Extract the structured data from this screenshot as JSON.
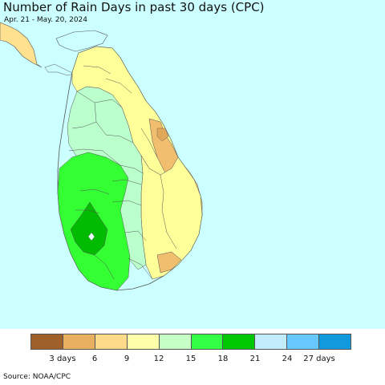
{
  "header": {
    "title": "Number of Rain Days in past 30 days (CPC)",
    "date_range": "Apr. 21 - May. 20, 2024"
  },
  "map": {
    "region": "Sri Lanka",
    "ocean_color": "#ccffff",
    "zone_colors": {
      "dark_green": "#00bb00",
      "green": "#33ff33",
      "light_green": "#bbffcc",
      "pale_yellow": "#ffff99",
      "light_orange": "#ffe190",
      "orange": "#f0be6e",
      "cyan_land": "#ccffff",
      "boundary": "#555555"
    }
  },
  "legend": {
    "colors": [
      "#a0602b",
      "#e8b060",
      "#fdd98a",
      "#ffffaa",
      "#c6ffc6",
      "#33ff44",
      "#00c800",
      "#c2ecfb",
      "#66c8ff",
      "#1199dd"
    ],
    "tick_labels": [
      "3 days",
      "6",
      "9",
      "12",
      "15",
      "18",
      "21",
      "24",
      "27 days"
    ]
  },
  "footer": {
    "source": "Source: NOAA/CPC"
  }
}
